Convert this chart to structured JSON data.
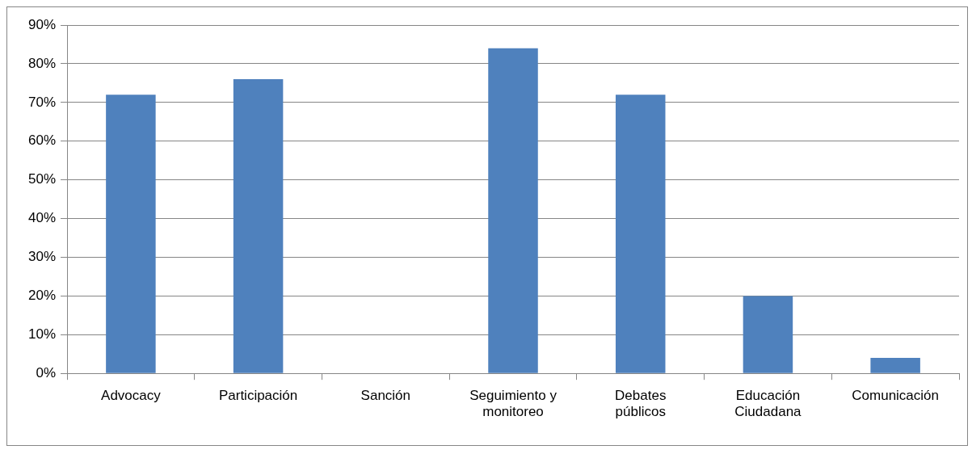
{
  "chart_data": {
    "type": "bar",
    "categories": [
      "Advocacy",
      "Participación",
      "Sanción",
      "Seguimiento y monitoreo",
      "Debates públicos",
      "Educación Ciudadana",
      "Comunicación"
    ],
    "values": [
      72,
      76,
      0,
      84,
      72,
      20,
      4
    ],
    "color": "#4f81bd",
    "ylim": [
      0,
      90
    ],
    "yticks": [
      {
        "value": 0,
        "label": "0%"
      },
      {
        "value": 10,
        "label": "10%"
      },
      {
        "value": 20,
        "label": "20%"
      },
      {
        "value": 30,
        "label": "30%"
      },
      {
        "value": 40,
        "label": "40%"
      },
      {
        "value": 50,
        "label": "50%"
      },
      {
        "value": 60,
        "label": "60%"
      },
      {
        "value": 70,
        "label": "70%"
      },
      {
        "value": 80,
        "label": "80%"
      },
      {
        "value": 90,
        "label": "90%"
      }
    ],
    "grid": "y",
    "legend": false
  }
}
